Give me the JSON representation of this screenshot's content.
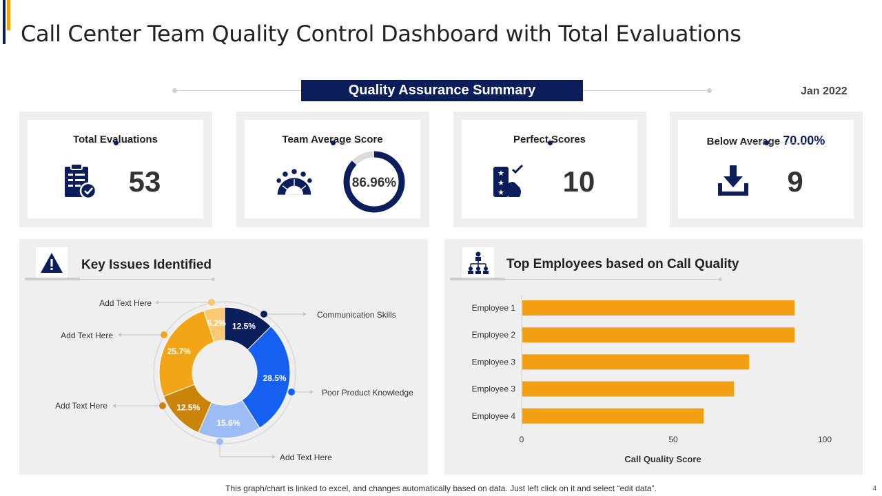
{
  "title": "Call Center Team Quality Control Dashboard with Total Evaluations",
  "summary_banner": "Quality Assurance Summary",
  "report_date": "Jan 2022",
  "kpis": {
    "total_evaluations": {
      "label": "Total Evaluations",
      "value": "53",
      "icon": "clipboard-check-icon"
    },
    "team_average": {
      "label": "Team Average Score",
      "value": "86.96%",
      "fraction": 0.8696,
      "icon": "team-meeting-icon"
    },
    "perfect_scores": {
      "label": "Perfect Scores",
      "value": "10",
      "icon": "star-rating-icon"
    },
    "below_average": {
      "label": "Below Average",
      "highlight": "70.00%",
      "value": "9",
      "icon": "download-tray-icon"
    }
  },
  "key_issues": {
    "title": "Key Issues Identified",
    "icon": "warning-triangle-icon"
  },
  "top_employees": {
    "title": "Top Employees based on Call Quality",
    "icon": "org-chart-icon"
  },
  "chart_data": [
    {
      "type": "pie",
      "title": "Key Issues Identified",
      "donut": true,
      "slices": [
        {
          "label": "Communication Skills",
          "value": 12.5,
          "display": "12.5%",
          "color": "#0b1e5b"
        },
        {
          "label": "Poor Product Knowledge",
          "value": 28.5,
          "display": "28.5%",
          "color": "#1560f0"
        },
        {
          "label": "Add Text Here",
          "value": 15.6,
          "display": "15.6%",
          "color": "#9dbcf5"
        },
        {
          "label": "Add Text Here",
          "value": 12.5,
          "display": "12.5%",
          "color": "#c98409"
        },
        {
          "label": "Add Text Here",
          "value": 25.7,
          "display": "25.7%",
          "color": "#f2a516"
        },
        {
          "label": "Add Text Here",
          "value": 5.2,
          "display": "5.2%",
          "color": "#f8c873"
        }
      ]
    },
    {
      "type": "bar",
      "orientation": "horizontal",
      "title": "Top Employees based on Call Quality",
      "categories": [
        "Employee 1",
        "Employee 2",
        "Employee 3",
        "Employee 3",
        "Employee 4"
      ],
      "values": [
        90,
        90,
        75,
        70,
        60
      ],
      "xlabel": "Call Quality Score",
      "xlim": [
        0,
        100
      ],
      "xticks": [
        "0",
        "50",
        "100"
      ],
      "bar_color": "#f29f14"
    }
  ],
  "footer_note": "This graph/chart is linked to excel,  and changes automatically based on data. Just left click on it and select “edit data”.",
  "page_number": "4"
}
